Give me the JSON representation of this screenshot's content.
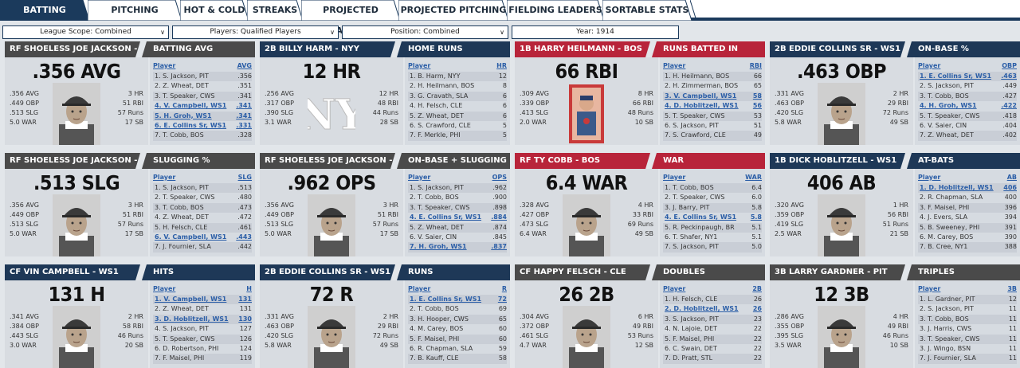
{
  "tabs": [
    {
      "label": "BATTING LEADERS",
      "active": true
    },
    {
      "label": "PITCHING LEADERS"
    },
    {
      "label": "HOT & COLD"
    },
    {
      "label": "STREAKS"
    },
    {
      "label": "PROJECTED BATTING"
    },
    {
      "label": "PROJECTED PITCHING"
    },
    {
      "label": "FIELDING LEADERS"
    },
    {
      "label": "SORTABLE STATS"
    }
  ],
  "filters": {
    "league": "League Scope: Combined",
    "players": "Players: Qualified Players",
    "position": "Position: Combined",
    "year": "Year: 1914"
  },
  "colors": {
    "navy": "#1e3857",
    "red": "#b8243a",
    "gray": "#4a4a4a",
    "link": "#2b5ea7"
  },
  "cards": [
    {
      "left_title": "RF SHOELESS JOE JACKSON - PIT",
      "category": "BATTING AVG",
      "big": ".356 AVG",
      "left_stats": [
        ".356 AVG",
        ".449 OBP",
        ".513 SLG",
        "5.0 WAR"
      ],
      "right_stats": [
        "3 HR",
        "51 RBI",
        "57 Runs",
        "17 SB"
      ],
      "col": "AVG",
      "photo": "player",
      "rows": [
        [
          "1. S. Jackson, PIT",
          ".356"
        ],
        [
          "2. Z. Wheat, DET",
          ".351"
        ],
        [
          "3. T. Speaker, CWS",
          ".341"
        ],
        [
          "4. V. Campbell, WS1",
          ".341"
        ],
        [
          "5. H. Groh, WS1",
          ".341"
        ],
        [
          "6. E. Collins Sr, WS1",
          ".331"
        ],
        [
          "7. T. Cobb, BOS",
          ".328"
        ]
      ],
      "hl": [
        3,
        4,
        5
      ],
      "left_color": "gray",
      "right_color": "gray"
    },
    {
      "left_title": "2B BILLY HARM - NYY",
      "category": "HOME RUNS",
      "big": "12 HR",
      "left_stats": [
        ".256 AVG",
        ".317 OBP",
        ".390 SLG",
        "3.1 WAR"
      ],
      "right_stats": [
        "12 HR",
        "48 RBI",
        "44 Runs",
        "28 SB"
      ],
      "col": "HR",
      "photo": "logo",
      "rows": [
        [
          "1. B. Harm, NYY",
          "12"
        ],
        [
          "2. H. Heilmann, BOS",
          "8"
        ],
        [
          "3. G. Cravath, SLA",
          "6"
        ],
        [
          "4. H. Felsch, CLE",
          "6"
        ],
        [
          "5. Z. Wheat, DET",
          "6"
        ],
        [
          "6. S. Crawford, CLE",
          "5"
        ],
        [
          "7. F. Merkle, PHI",
          "5"
        ]
      ],
      "hl": [],
      "left_color": "navy",
      "right_color": "navy"
    },
    {
      "left_title": "1B HARRY HEILMANN - BOS",
      "category": "RUNS BATTED IN",
      "big": "66 RBI",
      "left_stats": [
        ".309 AVG",
        ".339 OBP",
        ".413 SLG",
        "2.0 WAR"
      ],
      "right_stats": [
        "8 HR",
        "66 RBI",
        "48 Runs",
        "10 SB"
      ],
      "col": "RBI",
      "photo": "card",
      "rows": [
        [
          "1. H. Heilmann, BOS",
          "66"
        ],
        [
          "2. H. Zimmerman, BOS",
          "65"
        ],
        [
          "3. V. Campbell, WS1",
          "58"
        ],
        [
          "4. D. Hoblitzell, WS1",
          "56"
        ],
        [
          "5. T. Speaker, CWS",
          "53"
        ],
        [
          "6. S. Jackson, PIT",
          "51"
        ],
        [
          "7. S. Crawford, CLE",
          "49"
        ]
      ],
      "hl": [
        2,
        3
      ],
      "left_color": "red",
      "right_color": "red"
    },
    {
      "left_title": "2B EDDIE COLLINS SR - WS1",
      "category": "ON-BASE %",
      "big": ".463 OBP",
      "left_stats": [
        ".331 AVG",
        ".463 OBP",
        ".420 SLG",
        "5.8 WAR"
      ],
      "right_stats": [
        "2 HR",
        "29 RBI",
        "72 Runs",
        "49 SB"
      ],
      "col": "OBP",
      "photo": "player",
      "rows": [
        [
          "1. E. Collins Sr, WS1",
          ".463"
        ],
        [
          "2. S. Jackson, PIT",
          ".449"
        ],
        [
          "3. T. Cobb, BOS",
          ".427"
        ],
        [
          "4. H. Groh, WS1",
          ".422"
        ],
        [
          "5. T. Speaker, CWS",
          ".418"
        ],
        [
          "6. V. Saier, CIN",
          ".404"
        ],
        [
          "7. Z. Wheat, DET",
          ".402"
        ]
      ],
      "hl": [
        0,
        3
      ],
      "left_color": "navy",
      "right_color": "navy"
    },
    {
      "left_title": "RF SHOELESS JOE JACKSON - PIT",
      "category": "SLUGGING %",
      "big": ".513 SLG",
      "left_stats": [
        ".356 AVG",
        ".449 OBP",
        ".513 SLG",
        "5.0 WAR"
      ],
      "right_stats": [
        "3 HR",
        "51 RBI",
        "57 Runs",
        "17 SB"
      ],
      "col": "SLG",
      "photo": "player",
      "rows": [
        [
          "1. S. Jackson, PIT",
          ".513"
        ],
        [
          "2. T. Speaker, CWS",
          ".480"
        ],
        [
          "3. T. Cobb, BOS",
          ".473"
        ],
        [
          "4. Z. Wheat, DET",
          ".472"
        ],
        [
          "5. H. Felsch, CLE",
          ".461"
        ],
        [
          "6. V. Campbell, WS1",
          ".443"
        ],
        [
          "7. J. Fournier, SLA",
          ".442"
        ]
      ],
      "hl": [
        5
      ],
      "left_color": "gray",
      "right_color": "gray"
    },
    {
      "left_title": "RF SHOELESS JOE JACKSON - PIT",
      "category": "ON-BASE + SLUGGING",
      "big": ".962 OPS",
      "left_stats": [
        ".356 AVG",
        ".449 OBP",
        ".513 SLG",
        "5.0 WAR"
      ],
      "right_stats": [
        "3 HR",
        "51 RBI",
        "57 Runs",
        "17 SB"
      ],
      "col": "OPS",
      "photo": "player",
      "rows": [
        [
          "1. S. Jackson, PIT",
          ".962"
        ],
        [
          "2. T. Cobb, BOS",
          ".900"
        ],
        [
          "3. T. Speaker, CWS",
          ".898"
        ],
        [
          "4. E. Collins Sr, WS1",
          ".884"
        ],
        [
          "5. Z. Wheat, DET",
          ".874"
        ],
        [
          "6. V. Saier, CIN",
          ".845"
        ],
        [
          "7. H. Groh, WS1",
          ".837"
        ]
      ],
      "hl": [
        3,
        6
      ],
      "left_color": "gray",
      "right_color": "gray"
    },
    {
      "left_title": "RF TY COBB - BOS",
      "category": "WAR",
      "big": "6.4 WAR",
      "left_stats": [
        ".328 AVG",
        ".427 OBP",
        ".473 SLG",
        "6.4 WAR"
      ],
      "right_stats": [
        "4 HR",
        "33 RBI",
        "69 Runs",
        "49 SB"
      ],
      "col": "WAR",
      "photo": "player",
      "rows": [
        [
          "1. T. Cobb, BOS",
          "6.4"
        ],
        [
          "2. T. Speaker, CWS",
          "6.0"
        ],
        [
          "3. J. Barry, PIT",
          "5.8"
        ],
        [
          "4. E. Collins Sr, WS1",
          "5.8"
        ],
        [
          "5. R. Peckinpaugh, BR",
          "5.1"
        ],
        [
          "6. T. Shafer, NY1",
          "5.1"
        ],
        [
          "7. S. Jackson, PIT",
          "5.0"
        ]
      ],
      "hl": [
        3
      ],
      "left_color": "red",
      "right_color": "red"
    },
    {
      "left_title": "1B DICK HOBLITZELL - WS1",
      "category": "AT-BATS",
      "big": "406 AB",
      "left_stats": [
        ".320 AVG",
        ".359 OBP",
        ".419 SLG",
        "2.5 WAR"
      ],
      "right_stats": [
        "1 HR",
        "56 RBI",
        "51 Runs",
        "21 SB"
      ],
      "col": "AB",
      "photo": "player",
      "rows": [
        [
          "1. D. Hoblitzell, WS1",
          "406"
        ],
        [
          "2. R. Chapman, SLA",
          "400"
        ],
        [
          "3. F. Maisel, PHI",
          "396"
        ],
        [
          "4. J. Evers, SLA",
          "394"
        ],
        [
          "5. B. Sweeney, PHI",
          "391"
        ],
        [
          "6. M. Carey, BOS",
          "390"
        ],
        [
          "7. B. Cree, NY1",
          "388"
        ]
      ],
      "hl": [
        0
      ],
      "left_color": "navy",
      "right_color": "navy"
    },
    {
      "left_title": "CF VIN CAMPBELL - WS1",
      "category": "HITS",
      "big": "131 H",
      "left_stats": [
        ".341 AVG",
        ".384 OBP",
        ".443 SLG",
        "3.0 WAR"
      ],
      "right_stats": [
        "2 HR",
        "58 RBI",
        "46 Runs",
        "20 SB"
      ],
      "col": "H",
      "photo": "player",
      "rows": [
        [
          "1. V. Campbell, WS1",
          "131"
        ],
        [
          "2. Z. Wheat, DET",
          "131"
        ],
        [
          "3. D. Hoblitzell, WS1",
          "130"
        ],
        [
          "4. S. Jackson, PIT",
          "127"
        ],
        [
          "5. T. Speaker, CWS",
          "126"
        ],
        [
          "6. D. Robertson, PHI",
          "124"
        ],
        [
          "7. F. Maisel, PHI",
          "119"
        ]
      ],
      "hl": [
        0,
        2
      ],
      "left_color": "navy",
      "right_color": "navy"
    },
    {
      "left_title": "2B EDDIE COLLINS SR - WS1",
      "category": "RUNS",
      "big": "72 R",
      "left_stats": [
        ".331 AVG",
        ".463 OBP",
        ".420 SLG",
        "5.8 WAR"
      ],
      "right_stats": [
        "2 HR",
        "29 RBI",
        "72 Runs",
        "49 SB"
      ],
      "col": "R",
      "photo": "player",
      "rows": [
        [
          "1. E. Collins Sr, WS1",
          "72"
        ],
        [
          "2. T. Cobb, BOS",
          "69"
        ],
        [
          "3. H. Hooper, CWS",
          "65"
        ],
        [
          "4. M. Carey, BOS",
          "60"
        ],
        [
          "5. F. Maisel, PHI",
          "60"
        ],
        [
          "6. R. Chapman, SLA",
          "59"
        ],
        [
          "7. B. Kauff, CLE",
          "58"
        ]
      ],
      "hl": [
        0
      ],
      "left_color": "navy",
      "right_color": "navy"
    },
    {
      "left_title": "CF HAPPY FELSCH - CLE",
      "category": "DOUBLES",
      "big": "26 2B",
      "left_stats": [
        ".304 AVG",
        ".372 OBP",
        ".461 SLG",
        "4.7 WAR"
      ],
      "right_stats": [
        "6 HR",
        "49 RBI",
        "53 Runs",
        "12 SB"
      ],
      "col": "2B",
      "photo": "player",
      "rows": [
        [
          "1. H. Felsch, CLE",
          "26"
        ],
        [
          "2. D. Hoblitzell, WS1",
          "26"
        ],
        [
          "3. S. Jackson, PIT",
          "23"
        ],
        [
          "4. N. Lajoie, DET",
          "22"
        ],
        [
          "5. F. Maisel, PHI",
          "22"
        ],
        [
          "6. C. Swain, DET",
          "22"
        ],
        [
          "7. D. Pratt, STL",
          "22"
        ]
      ],
      "hl": [
        1
      ],
      "left_color": "gray",
      "right_color": "gray"
    },
    {
      "left_title": "3B LARRY GARDNER - PIT",
      "category": "TRIPLES",
      "big": "12 3B",
      "left_stats": [
        ".286 AVG",
        ".355 OBP",
        ".395 SLG",
        "3.5 WAR"
      ],
      "right_stats": [
        "4 HR",
        "49 RBI",
        "46 Runs",
        "10 SB"
      ],
      "col": "3B",
      "photo": "player",
      "rows": [
        [
          "1. L. Gardner, PIT",
          "12"
        ],
        [
          "2. S. Jackson, PIT",
          "11"
        ],
        [
          "3. T. Cobb, BOS",
          "11"
        ],
        [
          "3. J. Harris, CWS",
          "11"
        ],
        [
          "3. T. Speaker, CWS",
          "11"
        ],
        [
          "3. J. Wingo, BSN",
          "11"
        ],
        [
          "7. J. Fournier, SLA",
          "11"
        ]
      ],
      "hl": [],
      "left_color": "gray",
      "right_color": "gray"
    }
  ]
}
